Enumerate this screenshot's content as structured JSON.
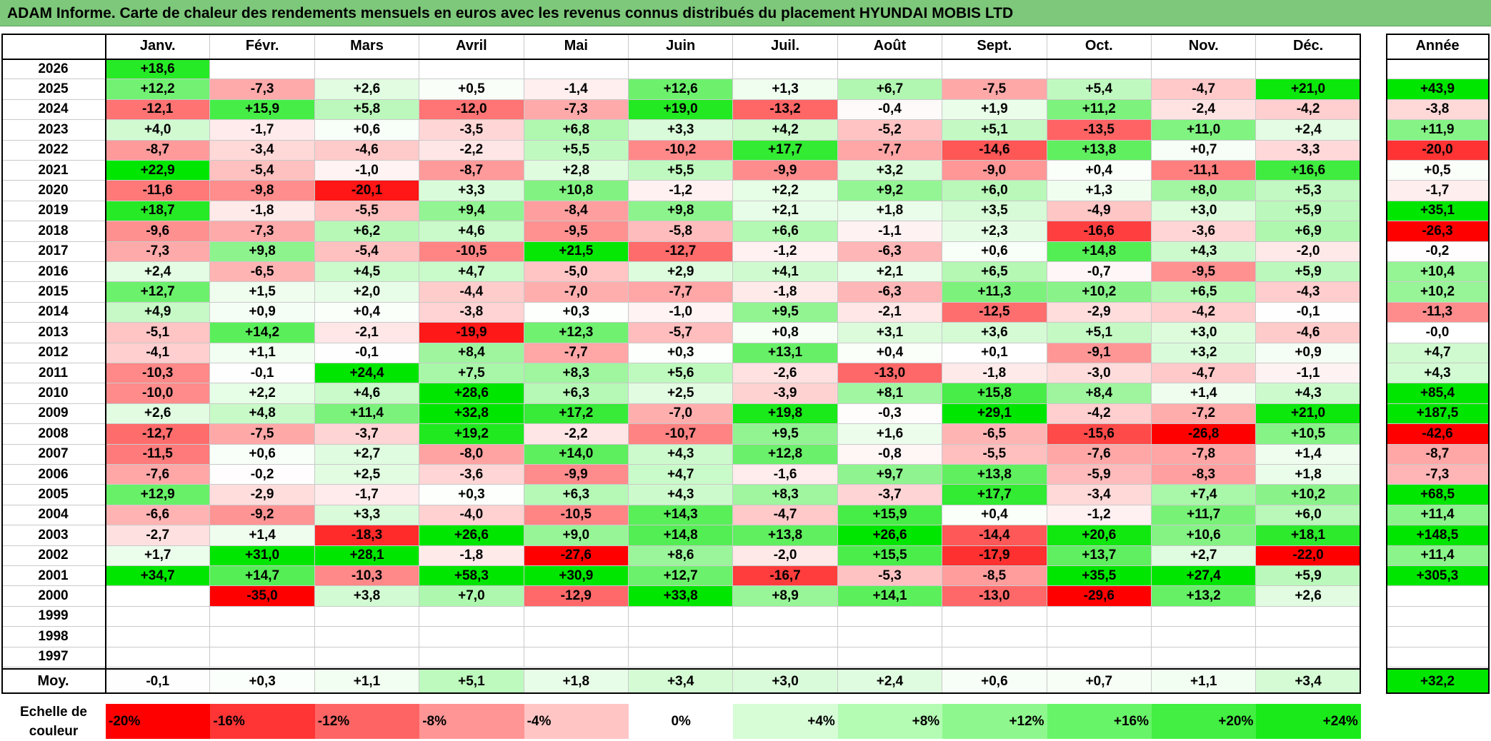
{
  "title": "ADAM Informe. Carte de chaleur des rendements mensuels en euros avec les revenus connus distribués du placement HYUNDAI MOBIS LTD",
  "chart_data": {
    "type": "heatmap",
    "columns": [
      "Janv.",
      "Févr.",
      "Mars",
      "Avril",
      "Mai",
      "Juin",
      "Juil.",
      "Août",
      "Sept.",
      "Oct.",
      "Nov.",
      "Déc."
    ],
    "year_column_label": "Année",
    "rows": [
      {
        "year": "2026",
        "months": [
          "+18,6",
          "",
          "",
          "",
          "",
          "",
          "",
          "",
          "",
          "",
          "",
          ""
        ],
        "annual": ""
      },
      {
        "year": "2025",
        "months": [
          "+12,2",
          "-7,3",
          "+2,6",
          "+0,5",
          "-1,4",
          "+12,6",
          "+1,3",
          "+6,7",
          "-7,5",
          "+5,4",
          "-4,7",
          "+21,0"
        ],
        "annual": "+43,9"
      },
      {
        "year": "2024",
        "months": [
          "-12,1",
          "+15,9",
          "+5,8",
          "-12,0",
          "-7,3",
          "+19,0",
          "-13,2",
          "-0,4",
          "+1,9",
          "+11,2",
          "-2,4",
          "-4,2"
        ],
        "annual": "-3,8"
      },
      {
        "year": "2023",
        "months": [
          "+4,0",
          "-1,7",
          "+0,6",
          "-3,5",
          "+6,8",
          "+3,3",
          "+4,2",
          "-5,2",
          "+5,1",
          "-13,5",
          "+11,0",
          "+2,4"
        ],
        "annual": "+11,9"
      },
      {
        "year": "2022",
        "months": [
          "-8,7",
          "-3,4",
          "-4,6",
          "-2,2",
          "+5,5",
          "-10,2",
          "+17,7",
          "-7,7",
          "-14,6",
          "+13,8",
          "+0,7",
          "-3,3"
        ],
        "annual": "-20,0"
      },
      {
        "year": "2021",
        "months": [
          "+22,9",
          "-5,4",
          "-1,0",
          "-8,7",
          "+2,8",
          "+5,5",
          "-9,9",
          "+3,2",
          "-9,0",
          "+0,4",
          "-11,1",
          "+16,6"
        ],
        "annual": "+0,5"
      },
      {
        "year": "2020",
        "months": [
          "-11,6",
          "-9,8",
          "-20,1",
          "+3,3",
          "+10,8",
          "-1,2",
          "+2,2",
          "+9,2",
          "+6,0",
          "+1,3",
          "+8,0",
          "+5,3"
        ],
        "annual": "-1,7"
      },
      {
        "year": "2019",
        "months": [
          "+18,7",
          "-1,8",
          "-5,5",
          "+9,4",
          "-8,4",
          "+9,8",
          "+2,1",
          "+1,8",
          "+3,5",
          "-4,9",
          "+3,0",
          "+5,9"
        ],
        "annual": "+35,1"
      },
      {
        "year": "2018",
        "months": [
          "-9,6",
          "-7,3",
          "+6,2",
          "+4,6",
          "-9,5",
          "-5,8",
          "+6,6",
          "-1,1",
          "+2,3",
          "-16,6",
          "-3,6",
          "+6,9"
        ],
        "annual": "-26,3"
      },
      {
        "year": "2017",
        "months": [
          "-7,3",
          "+9,8",
          "-5,4",
          "-10,5",
          "+21,5",
          "-12,7",
          "-1,2",
          "-6,3",
          "+0,6",
          "+14,8",
          "+4,3",
          "-2,0"
        ],
        "annual": "-0,2"
      },
      {
        "year": "2016",
        "months": [
          "+2,4",
          "-6,5",
          "+4,5",
          "+4,7",
          "-5,0",
          "+2,9",
          "+4,1",
          "+2,1",
          "+6,5",
          "-0,7",
          "-9,5",
          "+5,9"
        ],
        "annual": "+10,4"
      },
      {
        "year": "2015",
        "months": [
          "+12,7",
          "+1,5",
          "+2,0",
          "-4,4",
          "-7,0",
          "-7,7",
          "-1,8",
          "-6,3",
          "+11,3",
          "+10,2",
          "+6,5",
          "-4,3"
        ],
        "annual": "+10,2"
      },
      {
        "year": "2014",
        "months": [
          "+4,9",
          "+0,9",
          "+0,4",
          "-3,8",
          "+0,3",
          "-1,0",
          "+9,5",
          "-2,1",
          "-12,5",
          "-2,9",
          "-4,2",
          "-0,1"
        ],
        "annual": "-11,3"
      },
      {
        "year": "2013",
        "months": [
          "-5,1",
          "+14,2",
          "-2,1",
          "-19,9",
          "+12,3",
          "-5,7",
          "+0,8",
          "+3,1",
          "+3,6",
          "+5,1",
          "+3,0",
          "-4,6"
        ],
        "annual": "-0,0"
      },
      {
        "year": "2012",
        "months": [
          "-4,1",
          "+1,1",
          "-0,1",
          "+8,4",
          "-7,7",
          "+0,3",
          "+13,1",
          "+0,4",
          "+0,1",
          "-9,1",
          "+3,2",
          "+0,9"
        ],
        "annual": "+4,7"
      },
      {
        "year": "2011",
        "months": [
          "-10,3",
          "-0,1",
          "+24,4",
          "+7,5",
          "+8,3",
          "+5,6",
          "-2,6",
          "-13,0",
          "-1,8",
          "-3,0",
          "-4,7",
          "-1,1"
        ],
        "annual": "+4,3"
      },
      {
        "year": "2010",
        "months": [
          "-10,0",
          "+2,2",
          "+4,6",
          "+28,6",
          "+6,3",
          "+2,5",
          "-3,9",
          "+8,1",
          "+15,8",
          "+8,4",
          "+1,4",
          "+4,3"
        ],
        "annual": "+85,4"
      },
      {
        "year": "2009",
        "months": [
          "+2,6",
          "+4,8",
          "+11,4",
          "+32,8",
          "+17,2",
          "-7,0",
          "+19,8",
          "-0,3",
          "+29,1",
          "-4,2",
          "-7,2",
          "+21,0"
        ],
        "annual": "+187,5"
      },
      {
        "year": "2008",
        "months": [
          "-12,7",
          "-7,5",
          "-3,7",
          "+19,2",
          "-2,2",
          "-10,7",
          "+9,5",
          "+1,6",
          "-6,5",
          "-15,6",
          "-26,8",
          "+10,5"
        ],
        "annual": "-42,6"
      },
      {
        "year": "2007",
        "months": [
          "-11,5",
          "+0,6",
          "+2,7",
          "-8,0",
          "+14,0",
          "+4,3",
          "+12,8",
          "-0,8",
          "-5,5",
          "-7,6",
          "-7,8",
          "+1,4"
        ],
        "annual": "-8,7"
      },
      {
        "year": "2006",
        "months": [
          "-7,6",
          "-0,2",
          "+2,5",
          "-3,6",
          "-9,9",
          "+4,7",
          "-1,6",
          "+9,7",
          "+13,8",
          "-5,9",
          "-8,3",
          "+1,8"
        ],
        "annual": "-7,3"
      },
      {
        "year": "2005",
        "months": [
          "+12,9",
          "-2,9",
          "-1,7",
          "+0,3",
          "+6,3",
          "+4,3",
          "+8,3",
          "-3,7",
          "+17,7",
          "-3,4",
          "+7,4",
          "+10,2"
        ],
        "annual": "+68,5"
      },
      {
        "year": "2004",
        "months": [
          "-6,6",
          "-9,2",
          "+3,3",
          "-4,0",
          "-10,5",
          "+14,3",
          "-4,7",
          "+15,9",
          "+0,4",
          "-1,2",
          "+11,7",
          "+6,0"
        ],
        "annual": "+11,4"
      },
      {
        "year": "2003",
        "months": [
          "-2,7",
          "+1,4",
          "-18,3",
          "+26,6",
          "+9,0",
          "+14,8",
          "+13,8",
          "+26,6",
          "-14,4",
          "+20,6",
          "+10,6",
          "+18,1"
        ],
        "annual": "+148,5"
      },
      {
        "year": "2002",
        "months": [
          "+1,7",
          "+31,0",
          "+28,1",
          "-1,8",
          "-27,6",
          "+8,6",
          "-2,0",
          "+15,5",
          "-17,9",
          "+13,7",
          "+2,7",
          "-22,0"
        ],
        "annual": "+11,4"
      },
      {
        "year": "2001",
        "months": [
          "+34,7",
          "+14,7",
          "-10,3",
          "+58,3",
          "+30,9",
          "+12,7",
          "-16,7",
          "-5,3",
          "-8,5",
          "+35,5",
          "+27,4",
          "+5,9"
        ],
        "annual": "+305,3"
      },
      {
        "year": "2000",
        "months": [
          "",
          "-35,0",
          "+3,8",
          "+7,0",
          "-12,9",
          "+33,8",
          "+8,9",
          "+14,1",
          "-13,0",
          "-29,6",
          "+13,2",
          "+2,6"
        ],
        "annual": ""
      },
      {
        "year": "1999",
        "months": [
          "",
          "",
          "",
          "",
          "",
          "",
          "",
          "",
          "",
          "",
          "",
          ""
        ],
        "annual": ""
      },
      {
        "year": "1998",
        "months": [
          "",
          "",
          "",
          "",
          "",
          "",
          "",
          "",
          "",
          "",
          "",
          ""
        ],
        "annual": ""
      },
      {
        "year": "1997",
        "months": [
          "",
          "",
          "",
          "",
          "",
          "",
          "",
          "",
          "",
          "",
          "",
          ""
        ],
        "annual": ""
      }
    ],
    "average": {
      "label": "Moy.",
      "months": [
        "-0,1",
        "+0,3",
        "+1,1",
        "+5,1",
        "+1,8",
        "+3,4",
        "+3,0",
        "+2,4",
        "+0,6",
        "+0,7",
        "+1,1",
        "+3,4"
      ],
      "annual": "+32,2"
    },
    "color_scale": {
      "label_line1": "Echelle de",
      "label_line2": "couleur",
      "steps": [
        "-20%",
        "-16%",
        "-12%",
        "-8%",
        "-4%",
        "0%",
        "+4%",
        "+8%",
        "+12%",
        "+16%",
        "+20%",
        "+24%"
      ],
      "colors": [
        "#ff0000",
        "#ff3535",
        "#ff6464",
        "#ff9595",
        "#ffc5c5",
        "#ffffff",
        "#d6fdd6",
        "#b4fbb4",
        "#8ef88e",
        "#68f468",
        "#42ef42",
        "#1aea1a"
      ]
    },
    "negative_color": "#ff0000",
    "positive_color": "#00e600"
  }
}
